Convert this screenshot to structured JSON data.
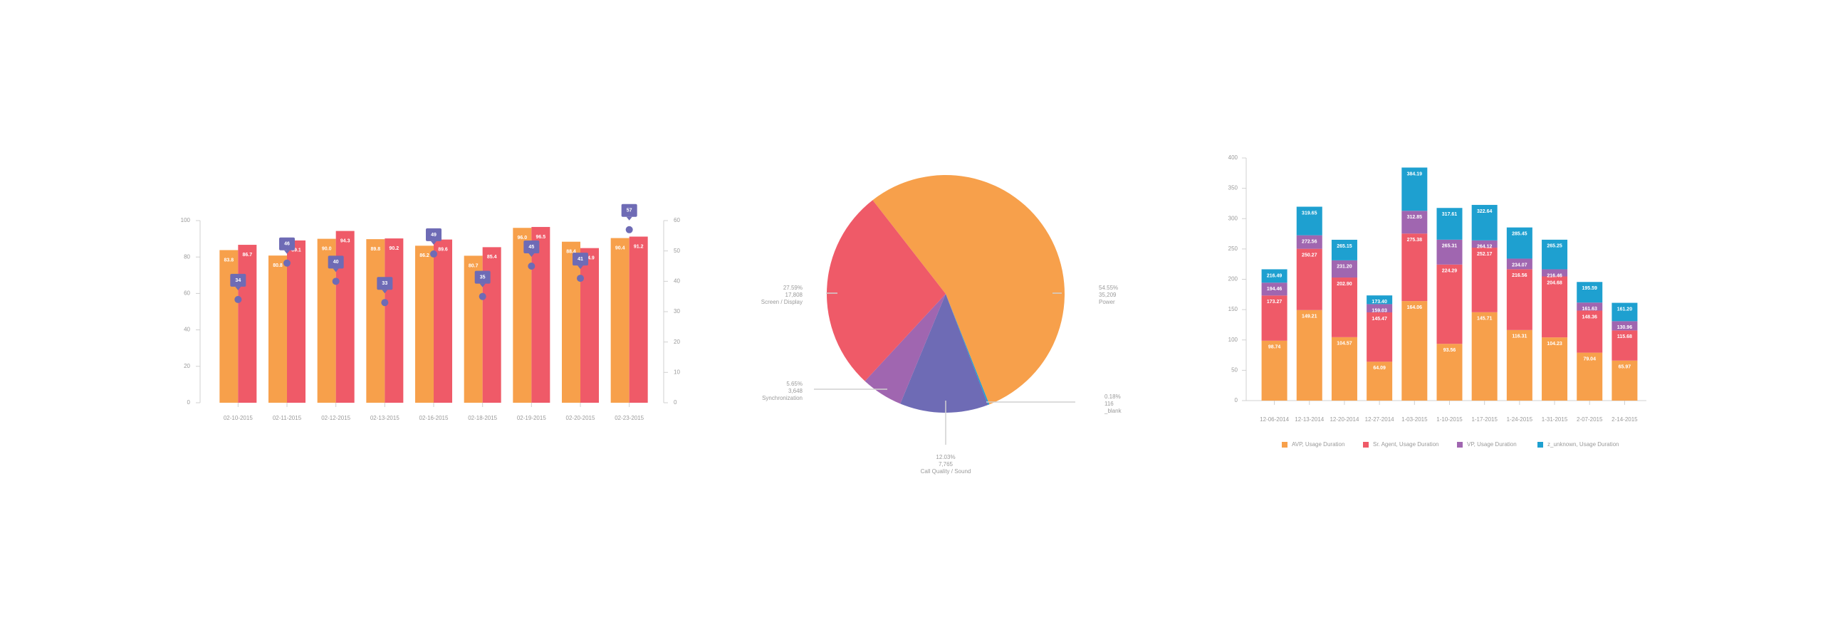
{
  "chart_data": [
    {
      "type": "bar",
      "categories": [
        "02-10-2015",
        "02-11-2015",
        "02-12-2015",
        "02-13-2015",
        "02-16-2015",
        "02-18-2015",
        "02-19-2015",
        "02-20-2015",
        "02-23-2015"
      ],
      "ylim": [
        0,
        100
      ],
      "yticks": [
        0,
        20,
        40,
        60,
        80,
        100
      ],
      "y2lim": [
        0,
        60
      ],
      "y2ticks": [
        0,
        10,
        20,
        30,
        40,
        50,
        60
      ],
      "series": [
        {
          "color": "#f7a04b",
          "values": [
            83.8,
            80.8,
            90.0,
            89.8,
            86.2,
            80.7,
            96.0,
            88.4,
            90.4
          ],
          "value_labels": [
            "83.8",
            "80.8",
            "90.0",
            "89.8",
            "86.2",
            "80.7",
            "96.0",
            "88.4",
            "90.4"
          ]
        },
        {
          "color": "#ef5a68",
          "values": [
            86.7,
            89.1,
            94.3,
            90.2,
            89.6,
            85.4,
            96.5,
            84.9,
            91.2
          ],
          "value_labels": [
            "86.7",
            "89.1",
            "94.3",
            "90.2",
            "89.6",
            "85.4",
            "96.5",
            "84.9",
            "91.2"
          ]
        },
        {
          "color": "#6e6bb5",
          "axis": "y2",
          "values": [
            34,
            46,
            40,
            33,
            49,
            35,
            45,
            41,
            57
          ]
        }
      ]
    },
    {
      "type": "pie",
      "categories": [
        "Power",
        "_blank",
        "Call Quality / Sound",
        "Synchronization",
        "Screen / Display"
      ],
      "values": [
        54.55,
        0.18,
        12.03,
        5.65,
        27.59
      ],
      "value_labels": [
        "54.55%",
        "0.18%",
        "12.03%",
        "5.65%",
        "27.59%"
      ],
      "counts": [
        35209,
        116,
        7765,
        3648,
        17808
      ],
      "count_labels": [
        "35,209",
        "116",
        "7,765",
        "3,648",
        "17,808"
      ],
      "colors": [
        "#f7a04b",
        "#1ea0d0",
        "#6e6bb5",
        "#a066b0",
        "#ef5a68"
      ]
    },
    {
      "type": "stacked_bar",
      "categories": [
        "12-06-2014",
        "12-13-2014",
        "12-20-2014",
        "12-27-2014",
        "1-03-2015",
        "1-10-2015",
        "1-17-2015",
        "1-24-2015",
        "1-31-2015",
        "2-07-2015",
        "2-14-2015"
      ],
      "ylim": [
        0,
        400
      ],
      "yticks": [
        0,
        50,
        100,
        150,
        200,
        250,
        300,
        350,
        400
      ],
      "legend": "bottom",
      "series": [
        {
          "name": "AVP, Usage Duration",
          "color": "#f7a04b",
          "values": [
            98.74,
            149.21,
            104.57,
            64.09,
            164.06,
            93.56,
            145.71,
            116.31,
            104.23,
            79.04,
            65.97
          ],
          "cumulative_labels": [
            "98.74",
            "149.21",
            "104.57",
            "64.09",
            "164.06",
            "93.56",
            "145.71",
            "116.31",
            "104.23",
            "79.04",
            "65.97"
          ]
        },
        {
          "name": "Sr. Agent, Usage Duration",
          "color": "#ef5a68",
          "values": [
            74.53,
            101.06,
            98.33,
            81.38,
            111.32,
            130.73,
            106.46,
            100.25,
            100.45,
            69.32,
            49.71
          ],
          "cumulative_labels": [
            "173.27",
            "250.27",
            "202.90",
            "145.47",
            "275.38",
            "224.29",
            "252.17",
            "216.56",
            "204.68",
            "148.36",
            "115.68"
          ]
        },
        {
          "name": "VP, Usage Duration",
          "color": "#a066b0",
          "values": [
            21.19,
            22.29,
            28.3,
            13.56,
            37.47,
            41.02,
            11.95,
            17.51,
            11.78,
            13.27,
            15.28
          ],
          "cumulative_labels": [
            "194.46",
            "272.56",
            "231.20",
            "159.03",
            "312.85",
            "265.31",
            "264.12",
            "234.07",
            "216.46",
            "161.63",
            "130.96"
          ]
        },
        {
          "name": "z_unknown, Usage Duration",
          "color": "#1ea0d0",
          "values": [
            22.03,
            47.09,
            33.95,
            14.37,
            71.34,
            52.3,
            58.52,
            51.38,
            48.79,
            33.96,
            30.24
          ],
          "cumulative_labels": [
            "216.49",
            "319.65",
            "265.15",
            "173.40",
            "384.19",
            "317.61",
            "322.64",
            "285.45",
            "265.25",
            "195.59",
            "161.20"
          ]
        }
      ]
    }
  ]
}
